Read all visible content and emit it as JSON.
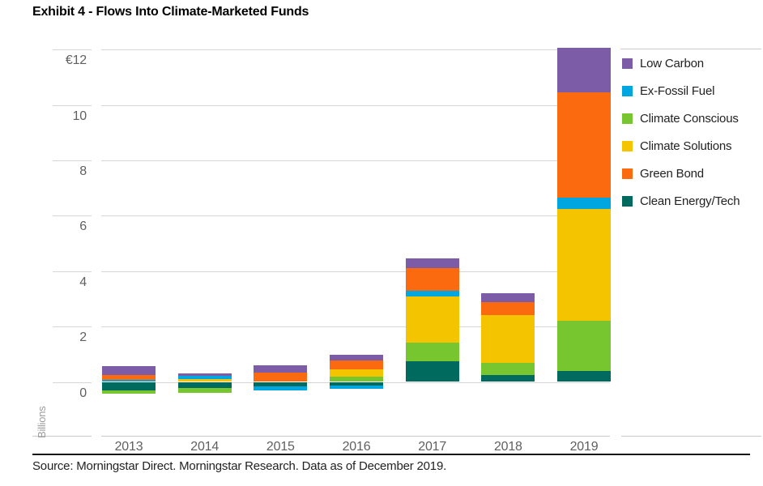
{
  "title": "Exhibit 4 - Flows Into Climate-Marketed Funds",
  "source_line": "Source: Morningstar Direct. Morningstar Research. Data as of December 2019.",
  "y_axis": {
    "unit_label": "Billions",
    "tick_values": [
      12,
      10,
      8,
      6,
      4,
      2,
      0
    ],
    "tick_labels": [
      "€12",
      "10",
      "8",
      "6",
      "4",
      "2",
      "0"
    ]
  },
  "colors": {
    "low_carbon": "#7d5ca7",
    "ex_fossil_fuel": "#00a6df",
    "climate_conscious": "#77c52f",
    "climate_solutions": "#f5c400",
    "green_bond": "#fb6a0e",
    "clean_energy_tech": "#006a5f",
    "gridline": "#d6d6d6",
    "axis_line": "#c9c9c9",
    "tick_text": "#606060"
  },
  "legend_order": [
    "Low Carbon",
    "Ex-Fossil Fuel",
    "Climate Conscious",
    "Climate Solutions",
    "Green Bond",
    "Clean Energy/Tech"
  ],
  "chart_data": {
    "type": "bar",
    "stacked": true,
    "title": "Exhibit 4 - Flows Into Climate-Marketed Funds",
    "ylabel": "Billions",
    "currency": "EUR",
    "ylim": [
      -2,
      12.3
    ],
    "grid": true,
    "legend_position": "right",
    "categories": [
      "2013",
      "2014",
      "2015",
      "2016",
      "2017",
      "2018",
      "2019"
    ],
    "series": [
      {
        "name": "Clean Energy/Tech",
        "color": "#006a5f",
        "values": [
          -0.31,
          -0.21,
          -0.16,
          -0.12,
          0.74,
          0.25,
          0.4
        ]
      },
      {
        "name": "Climate Conscious",
        "color": "#77c52f",
        "values": [
          -0.12,
          -0.18,
          0.0,
          0.19,
          0.69,
          0.45,
          1.8
        ]
      },
      {
        "name": "Climate Solutions",
        "color": "#f5c400",
        "values": [
          0.0,
          0.11,
          0.0,
          0.27,
          1.65,
          1.72,
          4.05
        ]
      },
      {
        "name": "Ex-Fossil Fuel",
        "color": "#00a6df",
        "values": [
          0.06,
          0.1,
          -0.15,
          -0.13,
          0.2,
          0.0,
          0.4
        ]
      },
      {
        "name": "Green Bond",
        "color": "#fb6a0e",
        "values": [
          0.19,
          0.0,
          0.33,
          0.31,
          0.83,
          0.45,
          3.8
        ]
      },
      {
        "name": "Low Carbon",
        "color": "#7d5ca7",
        "values": [
          0.33,
          0.09,
          0.28,
          0.2,
          0.35,
          0.33,
          1.6
        ]
      }
    ],
    "note": "Values in billions of euros; negative values are net outflows drawn below the zero line. Stack order from baseline outward: Clean Energy/Tech, Climate Conscious, Climate Solutions, Ex-Fossil Fuel, Green Bond, Low Carbon."
  }
}
